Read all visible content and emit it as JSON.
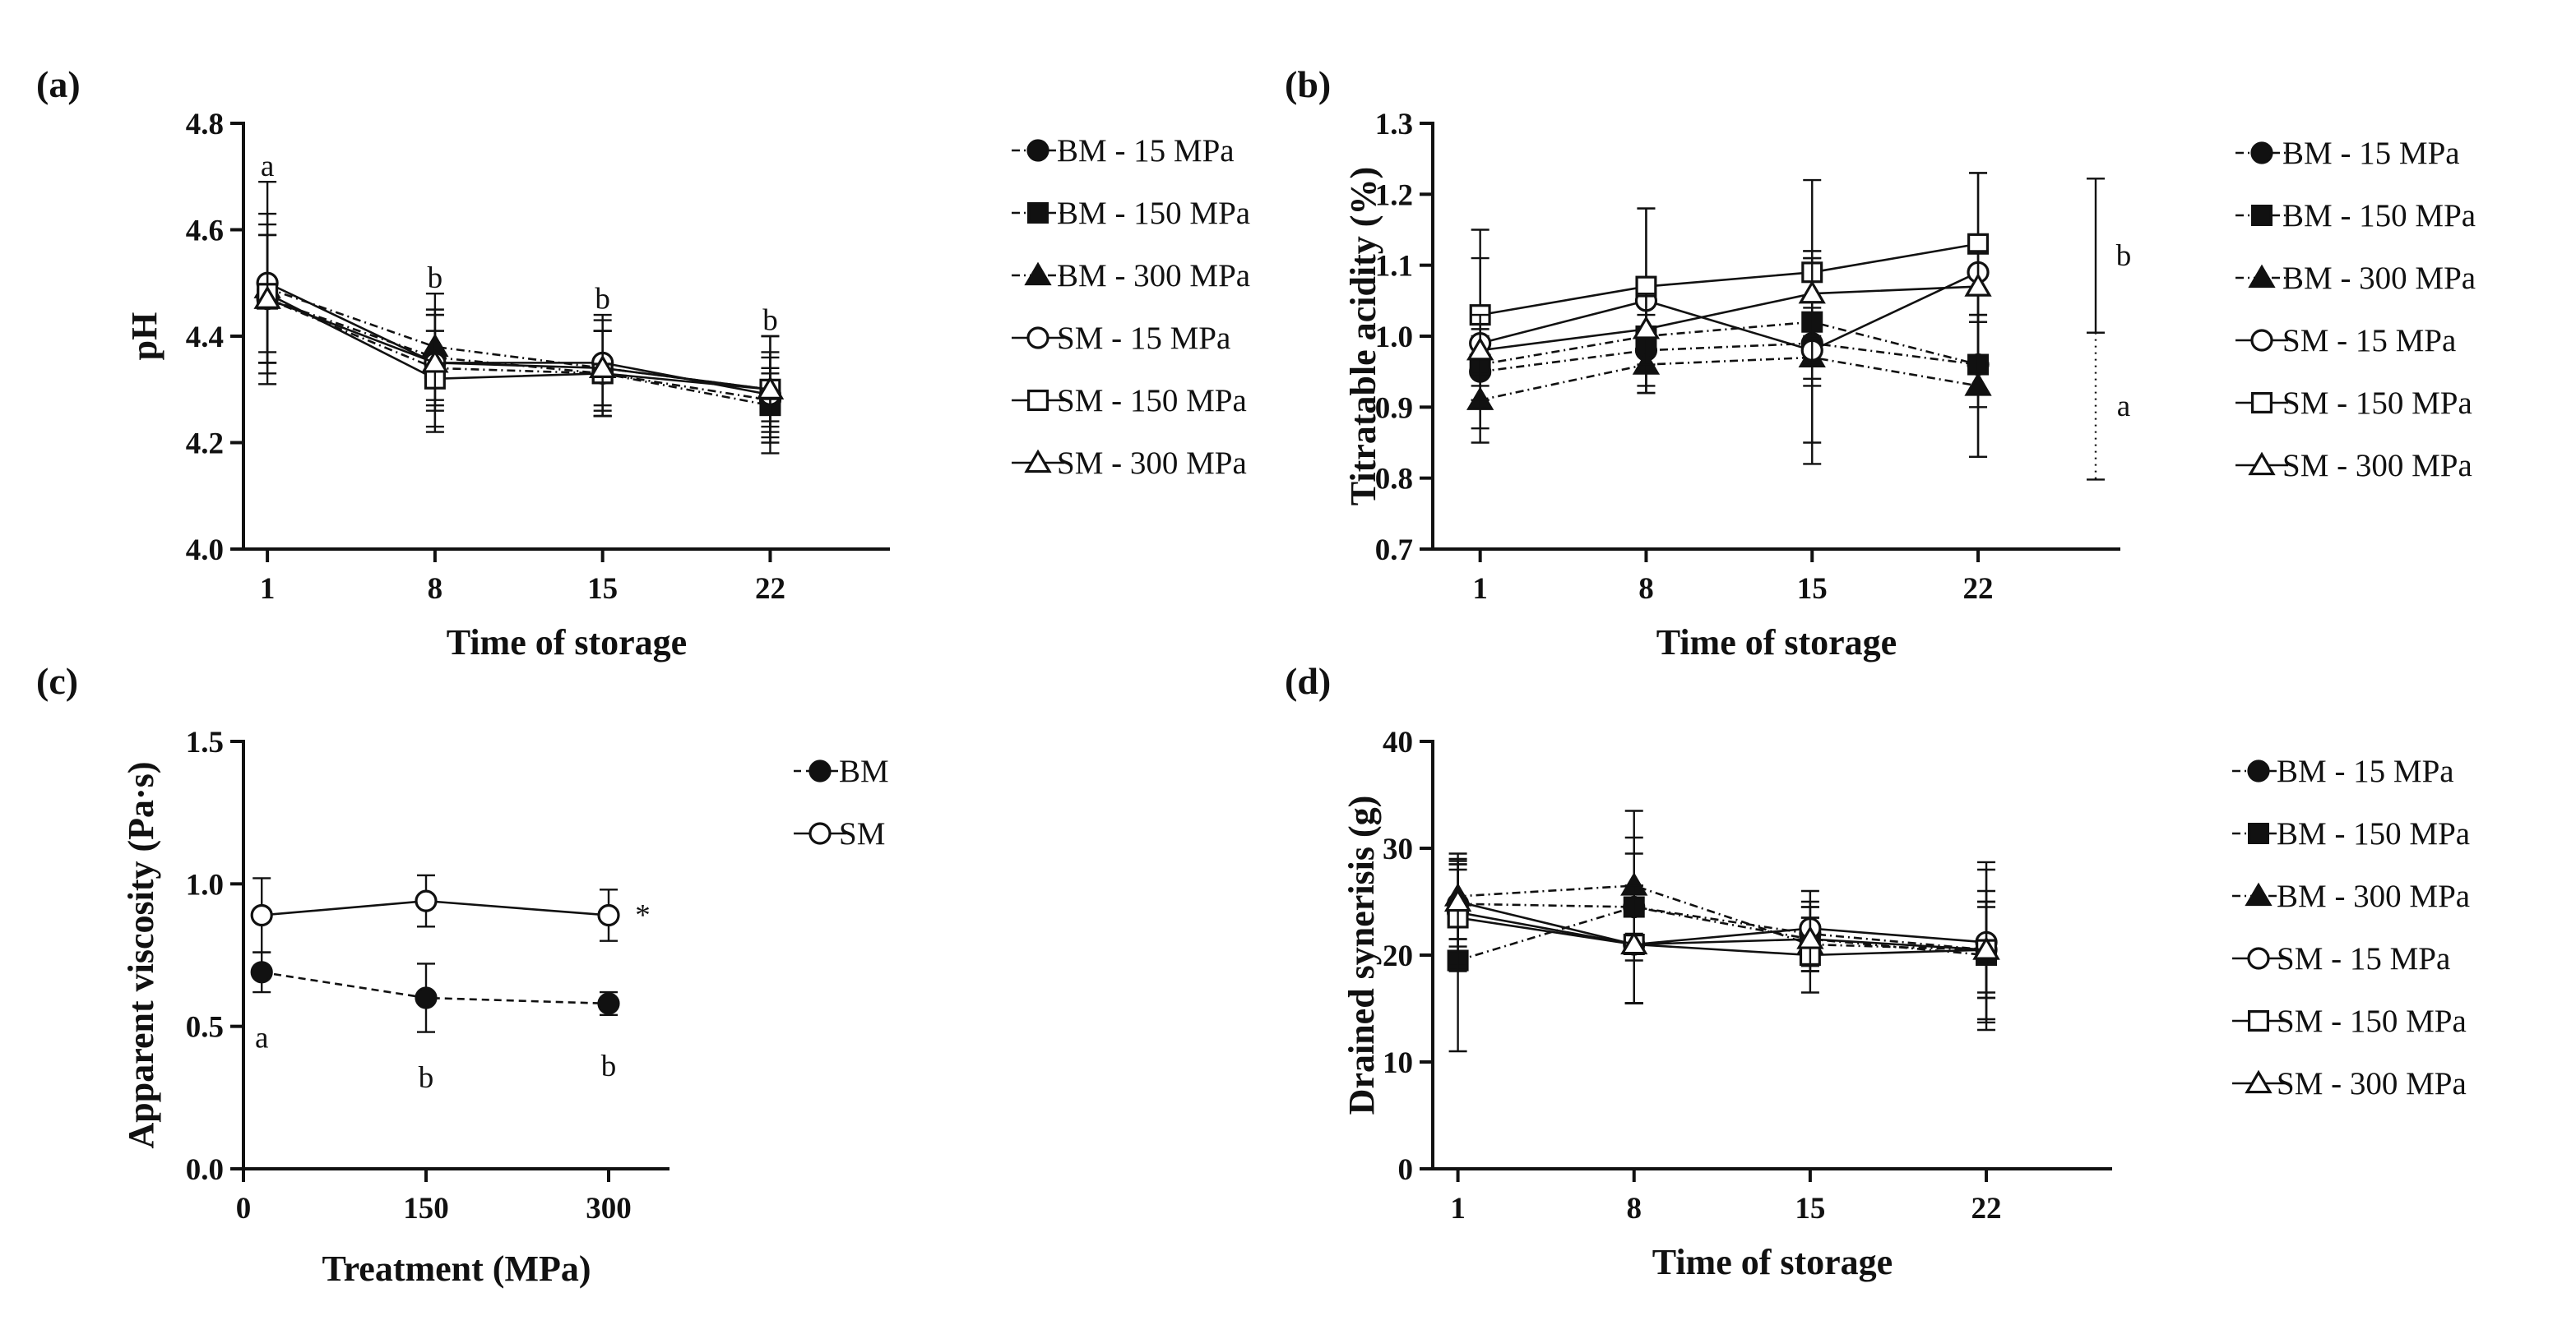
{
  "chart_data": [
    {
      "panel": "(a)",
      "type": "line",
      "xlabel": "Time of storage",
      "ylabel": "pH",
      "x": [
        1,
        8,
        15,
        22
      ],
      "xticks": [
        "1",
        "8",
        "15",
        "22"
      ],
      "xlim": [
        0,
        27
      ],
      "ylim": [
        4.0,
        4.8
      ],
      "yticks": [
        "4.0",
        "4.2",
        "4.4",
        "4.6",
        "4.8"
      ],
      "series": [
        {
          "name": "BM - 15 MPa",
          "marker": "circle-filled",
          "line": "dashdot",
          "values": [
            4.47,
            4.36,
            4.33,
            4.28
          ],
          "errors": [
            0.12,
            0.08,
            0.08,
            0.06
          ]
        },
        {
          "name": "BM - 150 MPa",
          "marker": "square-filled",
          "line": "dashdot",
          "values": [
            4.47,
            4.34,
            4.33,
            4.27
          ],
          "errors": [
            0.12,
            0.07,
            0.08,
            0.06
          ]
        },
        {
          "name": "BM - 300 MPa",
          "marker": "triangle-filled",
          "line": "dashdot",
          "values": [
            4.49,
            4.38,
            4.34,
            4.3
          ],
          "errors": [
            0.12,
            0.07,
            0.07,
            0.06
          ]
        },
        {
          "name": "SM - 15 MPa",
          "marker": "circle-open",
          "line": "solid",
          "values": [
            4.5,
            4.35,
            4.35,
            4.29
          ],
          "errors": [
            0.19,
            0.13,
            0.09,
            0.11
          ]
        },
        {
          "name": "SM - 150 MPa",
          "marker": "square-open",
          "line": "solid",
          "values": [
            4.48,
            4.32,
            4.33,
            4.3
          ],
          "errors": [
            0.15,
            0.09,
            0.08,
            0.1
          ]
        },
        {
          "name": "SM - 300 MPa",
          "marker": "triangle-open",
          "line": "solid",
          "values": [
            4.47,
            4.35,
            4.34,
            4.3
          ],
          "errors": [
            0.12,
            0.09,
            0.09,
            0.07
          ]
        }
      ],
      "annotations": [
        {
          "text": "a",
          "x": 1,
          "y": 4.72
        },
        {
          "text": "b",
          "x": 8,
          "y": 4.51
        },
        {
          "text": "b",
          "x": 15,
          "y": 4.47
        },
        {
          "text": "b",
          "x": 22,
          "y": 4.43
        }
      ]
    },
    {
      "panel": "(b)",
      "type": "line",
      "xlabel": "Time of storage",
      "ylabel": "Titratable acidity (%)",
      "x": [
        1,
        8,
        15,
        22
      ],
      "xticks": [
        "1",
        "8",
        "15",
        "22"
      ],
      "xlim": [
        -1,
        28
      ],
      "ylim": [
        0.7,
        1.3
      ],
      "yticks": [
        "0.7",
        "0.8",
        "0.9",
        "1.0",
        "1.1",
        "1.2",
        "1.3"
      ],
      "series": [
        {
          "name": "BM - 15 MPa",
          "marker": "circle-filled",
          "line": "dashdot",
          "values": [
            0.95,
            0.98,
            0.99,
            0.96
          ],
          "errors": [
            0.05,
            0.05,
            0.05,
            0.06
          ]
        },
        {
          "name": "BM - 150 MPa",
          "marker": "square-filled",
          "line": "dashdot",
          "values": [
            0.96,
            1.0,
            1.02,
            0.96
          ],
          "errors": [
            0.05,
            0.08,
            0.09,
            0.13
          ]
        },
        {
          "name": "BM - 300 MPa",
          "marker": "triangle-filled",
          "line": "dashdot",
          "values": [
            0.91,
            0.96,
            0.97,
            0.93
          ],
          "errors": [
            0.06,
            0.04,
            0.15,
            0.1
          ]
        },
        {
          "name": "SM - 15 MPa",
          "marker": "circle-open",
          "line": "solid",
          "values": [
            0.99,
            1.05,
            0.98,
            1.09
          ],
          "errors": [
            0.12,
            0.13,
            0.13,
            0.14
          ]
        },
        {
          "name": "SM - 150 MPa",
          "marker": "square-open",
          "line": "solid",
          "values": [
            1.03,
            1.07,
            1.09,
            1.13
          ],
          "errors": [
            0.12,
            0.11,
            0.13,
            0.1
          ]
        },
        {
          "name": "SM - 300 MPa",
          "marker": "triangle-open",
          "line": "solid",
          "values": [
            0.98,
            1.01,
            1.06,
            1.07
          ],
          "errors": [
            0.05,
            0.05,
            0.06,
            0.05
          ]
        }
      ],
      "brackets": [
        {
          "label": "b",
          "y_low": 1.005,
          "y_high": 1.222,
          "style": "solid"
        },
        {
          "label": "a",
          "y_low": 0.798,
          "y_high": 1.005,
          "style": "dotted"
        }
      ]
    },
    {
      "panel": "(c)",
      "type": "line",
      "xlabel": "Treatment (MPa)",
      "ylabel": "Apparent viscosity (Pa·s)",
      "x": [
        15,
        150,
        300
      ],
      "xticks": [
        "0",
        "150",
        "300"
      ],
      "xtick_values": [
        0,
        150,
        300
      ],
      "xlim": [
        0,
        350
      ],
      "ylim": [
        0.0,
        1.5
      ],
      "yticks": [
        "0.0",
        "0.5",
        "1.0",
        "1.5"
      ],
      "series": [
        {
          "name": "BM",
          "marker": "circle-filled",
          "line": "dashed",
          "values": [
            0.69,
            0.6,
            0.58
          ],
          "errors": [
            0.07,
            0.12,
            0.04
          ]
        },
        {
          "name": "SM",
          "marker": "circle-open",
          "line": "solid",
          "values": [
            0.89,
            0.94,
            0.89
          ],
          "errors": [
            0.13,
            0.09,
            0.09
          ]
        }
      ],
      "annotations": [
        {
          "text": "a",
          "x": 15,
          "y": 0.46
        },
        {
          "text": "b",
          "x": 150,
          "y": 0.32
        },
        {
          "text": "b",
          "x": 300,
          "y": 0.36
        },
        {
          "text": "*",
          "x": 328,
          "y": 0.89
        }
      ]
    },
    {
      "panel": "(d)",
      "type": "line",
      "xlabel": "Time of storage",
      "ylabel": "Drained synerisis (g)",
      "x": [
        1,
        8,
        15,
        22
      ],
      "xticks": [
        "1",
        "8",
        "15",
        "22"
      ],
      "xlim": [
        0,
        27
      ],
      "ylim": [
        0,
        40
      ],
      "yticks": [
        "0",
        "10",
        "20",
        "30",
        "40"
      ],
      "series": [
        {
          "name": "BM - 15 MPa",
          "marker": "circle-filled",
          "line": "dashdot",
          "values": [
            24.8,
            24.5,
            22.0,
            20.5
          ],
          "errors": [
            4.0,
            5.0,
            3.0,
            4.0
          ]
        },
        {
          "name": "BM - 150 MPa",
          "marker": "square-filled",
          "line": "dashdot",
          "values": [
            19.5,
            24.5,
            21.5,
            20.0
          ],
          "errors": [
            8.5,
            9.0,
            3.0,
            6.0
          ]
        },
        {
          "name": "BM - 300 MPa",
          "marker": "triangle-filled",
          "line": "dashdot",
          "values": [
            25.5,
            26.5,
            21.0,
            20.5
          ],
          "errors": [
            4.0,
            4.5,
            2.5,
            4.5
          ]
        },
        {
          "name": "SM - 15 MPa",
          "marker": "circle-open",
          "line": "solid",
          "values": [
            24.0,
            21.0,
            22.5,
            21.2
          ],
          "errors": [
            5.0,
            5.5,
            3.5,
            7.5
          ]
        },
        {
          "name": "SM - 150 MPa",
          "marker": "square-open",
          "line": "solid",
          "values": [
            23.5,
            21.0,
            20.0,
            20.5
          ],
          "errors": [
            5.0,
            5.5,
            3.5,
            7.5
          ]
        },
        {
          "name": "SM - 300 MPa",
          "marker": "triangle-open",
          "line": "solid",
          "values": [
            25.0,
            21.0,
            21.5,
            20.5
          ],
          "errors": [
            3.5,
            5.5,
            3.0,
            4.5
          ]
        }
      ]
    }
  ]
}
